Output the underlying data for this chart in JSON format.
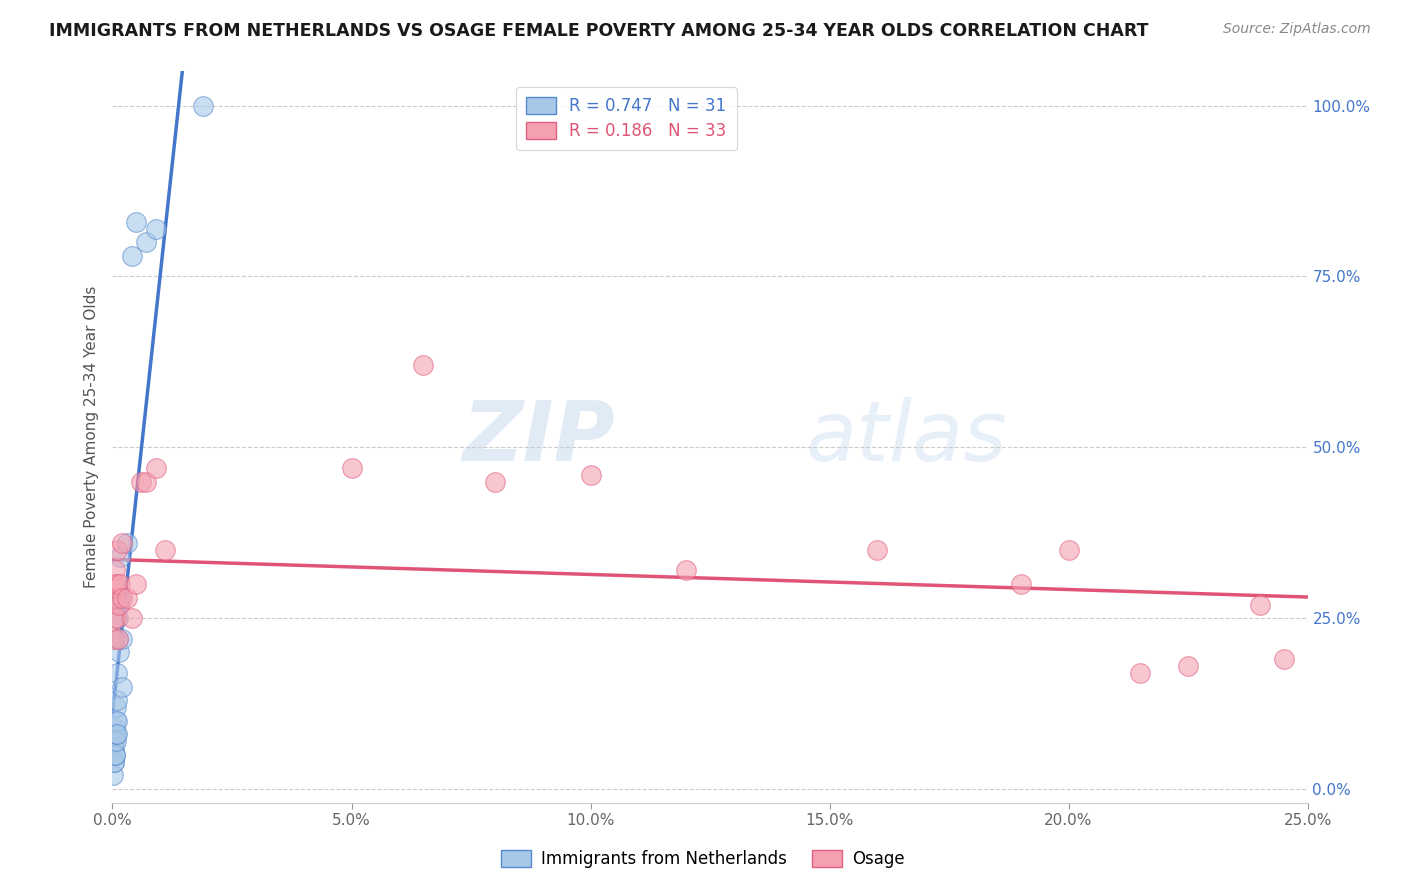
{
  "title": "IMMIGRANTS FROM NETHERLANDS VS OSAGE FEMALE POVERTY AMONG 25-34 YEAR OLDS CORRELATION CHART",
  "source": "Source: ZipAtlas.com",
  "ylabel": "Female Poverty Among 25-34 Year Olds",
  "xlim": [
    0.0,
    0.25
  ],
  "ylim": [
    -0.02,
    1.05
  ],
  "xticks": [
    0.0,
    0.05,
    0.1,
    0.15,
    0.2,
    0.25
  ],
  "xticklabels": [
    "0.0%",
    "5.0%",
    "10.0%",
    "15.0%",
    "20.0%",
    "25.0%"
  ],
  "yticks_right": [
    0.0,
    0.25,
    0.5,
    0.75,
    1.0
  ],
  "yticklabels_right": [
    "0.0%",
    "25.0%",
    "50.0%",
    "75.0%",
    "100.0%"
  ],
  "blue_color": "#A8C8E8",
  "pink_color": "#F4A0B0",
  "blue_edge_color": "#5588CC",
  "pink_edge_color": "#E06080",
  "blue_line_color": "#4477CC",
  "pink_line_color": "#E05575",
  "R_blue": 0.747,
  "N_blue": 31,
  "R_pink": 0.186,
  "N_pink": 33,
  "legend_label_blue": "Immigrants from Netherlands",
  "legend_label_pink": "Osage",
  "watermark_zip": "ZIP",
  "watermark_atlas": "atlas",
  "background_color": "#FFFFFF",
  "grid_color": "#CCCCCC",
  "blue_x": [
    0.0002,
    0.0003,
    0.0003,
    0.0004,
    0.0004,
    0.0005,
    0.0005,
    0.0006,
    0.0006,
    0.0007,
    0.0007,
    0.0008,
    0.0008,
    0.0009,
    0.001,
    0.001,
    0.001,
    0.0012,
    0.0012,
    0.0013,
    0.0014,
    0.0015,
    0.0016,
    0.002,
    0.002,
    0.003,
    0.004,
    0.005,
    0.007,
    0.009,
    0.019
  ],
  "blue_y": [
    0.02,
    0.04,
    0.06,
    0.04,
    0.07,
    0.05,
    0.08,
    0.05,
    0.09,
    0.07,
    0.1,
    0.08,
    0.12,
    0.1,
    0.08,
    0.13,
    0.17,
    0.22,
    0.25,
    0.27,
    0.2,
    0.28,
    0.34,
    0.15,
    0.22,
    0.36,
    0.78,
    0.83,
    0.8,
    0.82,
    1.0
  ],
  "pink_x": [
    0.0002,
    0.0003,
    0.0004,
    0.0005,
    0.0006,
    0.0007,
    0.0008,
    0.001,
    0.001,
    0.0012,
    0.0013,
    0.0015,
    0.002,
    0.002,
    0.003,
    0.004,
    0.005,
    0.006,
    0.007,
    0.009,
    0.011,
    0.05,
    0.065,
    0.08,
    0.1,
    0.12,
    0.16,
    0.19,
    0.2,
    0.215,
    0.225,
    0.24,
    0.245
  ],
  "pink_y": [
    0.28,
    0.22,
    0.3,
    0.25,
    0.32,
    0.28,
    0.25,
    0.3,
    0.35,
    0.22,
    0.27,
    0.3,
    0.28,
    0.36,
    0.28,
    0.25,
    0.3,
    0.45,
    0.45,
    0.47,
    0.35,
    0.47,
    0.62,
    0.45,
    0.46,
    0.32,
    0.35,
    0.3,
    0.35,
    0.17,
    0.18,
    0.27,
    0.19
  ]
}
